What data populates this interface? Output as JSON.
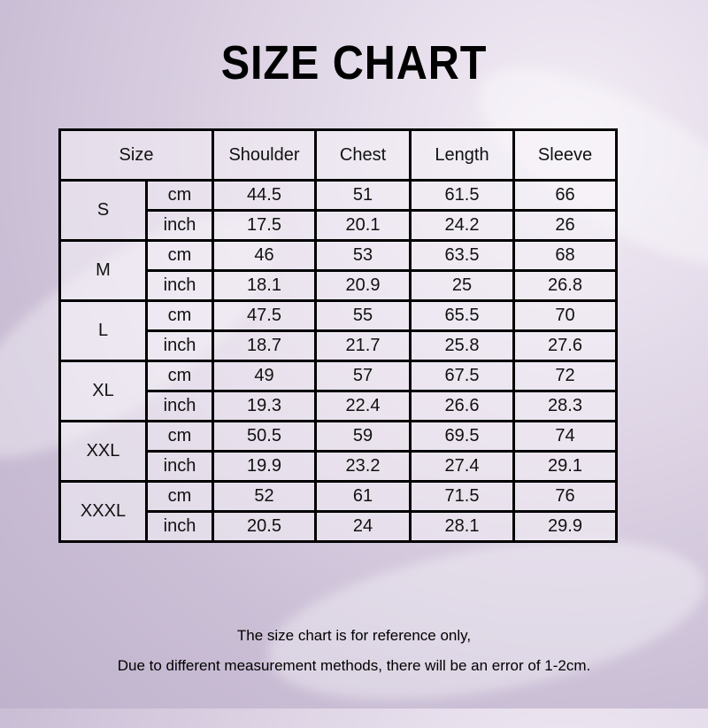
{
  "title": "SIZE CHART",
  "table": {
    "headers": {
      "size": "Size",
      "columns": [
        "Shoulder",
        "Chest",
        "Length",
        "Sleeve"
      ]
    },
    "sizes": [
      {
        "size": "S",
        "rows": [
          {
            "unit": "cm",
            "values": [
              "44.5",
              "51",
              "61.5",
              "66"
            ]
          },
          {
            "unit": "inch",
            "values": [
              "17.5",
              "20.1",
              "24.2",
              "26"
            ]
          }
        ]
      },
      {
        "size": "M",
        "rows": [
          {
            "unit": "cm",
            "values": [
              "46",
              "53",
              "63.5",
              "68"
            ]
          },
          {
            "unit": "inch",
            "values": [
              "18.1",
              "20.9",
              "25",
              "26.8"
            ]
          }
        ]
      },
      {
        "size": "L",
        "rows": [
          {
            "unit": "cm",
            "values": [
              "47.5",
              "55",
              "65.5",
              "70"
            ]
          },
          {
            "unit": "inch",
            "values": [
              "18.7",
              "21.7",
              "25.8",
              "27.6"
            ]
          }
        ]
      },
      {
        "size": "XL",
        "rows": [
          {
            "unit": "cm",
            "values": [
              "49",
              "57",
              "67.5",
              "72"
            ]
          },
          {
            "unit": "inch",
            "values": [
              "19.3",
              "22.4",
              "26.6",
              "28.3"
            ]
          }
        ]
      },
      {
        "size": "XXL",
        "rows": [
          {
            "unit": "cm",
            "values": [
              "50.5",
              "59",
              "69.5",
              "74"
            ]
          },
          {
            "unit": "inch",
            "values": [
              "19.9",
              "23.2",
              "27.4",
              "29.1"
            ]
          }
        ]
      },
      {
        "size": "XXXL",
        "rows": [
          {
            "unit": "cm",
            "values": [
              "52",
              "61",
              "71.5",
              "76"
            ]
          },
          {
            "unit": "inch",
            "values": [
              "20.5",
              "24",
              "28.1",
              "29.9"
            ]
          }
        ]
      }
    ]
  },
  "footer": {
    "line1": "The size chart is for reference only,",
    "line2": "Due to different measurement methods, there will be an error of 1-2cm."
  }
}
